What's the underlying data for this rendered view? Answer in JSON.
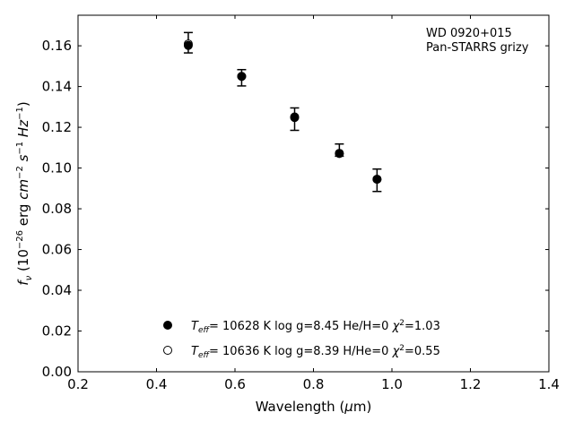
{
  "chart_data": {
    "type": "scatter",
    "xlabel": "Wavelength (μm)",
    "ylabel": "fν (10⁻²⁶ erg cm⁻² s⁻¹ Hz⁻¹)",
    "xlim": [
      0.2,
      1.4
    ],
    "ylim": [
      0.0,
      0.175
    ],
    "xticks": [
      "0.2",
      "0.4",
      "0.6",
      "0.8",
      "1.0",
      "1.2",
      "1.4"
    ],
    "yticks": [
      "0.00",
      "0.02",
      "0.04",
      "0.06",
      "0.08",
      "0.10",
      "0.12",
      "0.14",
      "0.16"
    ],
    "grid": false,
    "legend_position": "bottom-center",
    "annotation": [
      "WD 0920+015",
      "Pan-STARRS grizy"
    ],
    "observed": {
      "x": [
        0.481,
        0.617,
        0.752,
        0.866,
        0.962
      ],
      "y": [
        0.1615,
        0.1443,
        0.124,
        0.1088,
        0.094
      ],
      "yerr": [
        0.005,
        0.004,
        0.0055,
        0.003,
        0.0055
      ]
    },
    "series": [
      {
        "name": "T_eff= 10628 K  log g=8.45  He/H=0  χ²=1.03",
        "marker": "filled-circle",
        "x": [
          0.481,
          0.617,
          0.752,
          0.866,
          0.962
        ],
        "y": [
          0.1602,
          0.145,
          0.1248,
          0.1072,
          0.0945
        ]
      },
      {
        "name": "T_eff= 10636 K  log g=8.39  H/He=0  χ²=0.55",
        "marker": "open-circle",
        "x": [
          0.481,
          0.617,
          0.752,
          0.866,
          0.962
        ],
        "y": [
          0.1609,
          0.145,
          0.1251,
          0.1072,
          0.0945
        ]
      }
    ],
    "legend": [
      {
        "teff": "= 10628 K",
        "params": "  log g=8.45  He/H=0  ",
        "chi": "=1.03"
      },
      {
        "teff": "= 10636 K",
        "params": "  log g=8.39  H/He=0  ",
        "chi": "=0.55"
      }
    ]
  }
}
